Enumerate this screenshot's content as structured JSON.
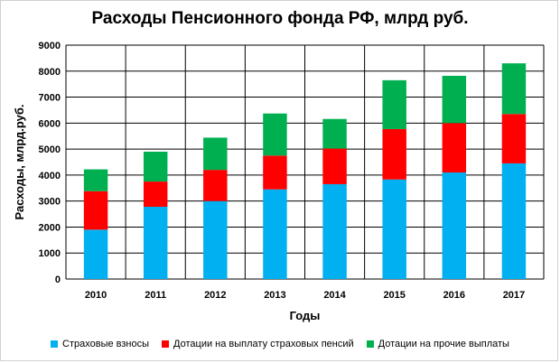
{
  "chart_data": {
    "type": "bar",
    "stacked": true,
    "title": "Расходы Пенсионного фонда РФ, млрд руб.",
    "xlabel": "Годы",
    "ylabel": "Расходы, млрд.руб.",
    "ylim": [
      0,
      9000
    ],
    "yticks": [
      "0",
      "1000",
      "2000",
      "3000",
      "4000",
      "5000",
      "6000",
      "7000",
      "8000",
      "9000"
    ],
    "grid": true,
    "legend_position": "bottom",
    "categories": [
      "2010",
      "2011",
      "2012",
      "2013",
      "2014",
      "2015",
      "2016",
      "2017"
    ],
    "series": [
      {
        "name": "Страховые взносы",
        "color": "#00b0f0",
        "values": [
          1900,
          2780,
          3000,
          3450,
          3650,
          3830,
          4100,
          4450
        ]
      },
      {
        "name": "Дотации на выплату страховых пенсий",
        "color": "#ff0000",
        "values": [
          1480,
          970,
          1200,
          1300,
          1370,
          1940,
          1900,
          1900
        ]
      },
      {
        "name": "Дотации на прочие выплаты",
        "color": "#00b050",
        "values": [
          840,
          1150,
          1240,
          1620,
          1140,
          1880,
          1820,
          1950
        ]
      }
    ]
  }
}
